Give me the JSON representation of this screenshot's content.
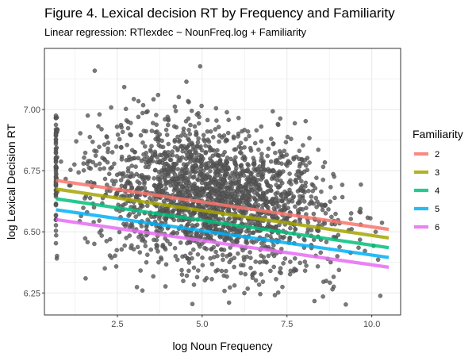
{
  "chart_data": {
    "type": "scatter",
    "title": "Figure 4. Lexical decision RT by Frequency and Familiarity",
    "subtitle": "Linear regression: RTlexdec ~ NounFreq.log + Familiarity",
    "xlabel": "log Noun Frequency",
    "ylabel": "log Lexical Decision RT",
    "xlim": [
      0.35,
      10.85
    ],
    "ylim": [
      6.16,
      7.25
    ],
    "x_ticks": [
      2.5,
      5.0,
      7.5,
      10.0
    ],
    "x_tick_labels": [
      "2.5",
      "5.0",
      "7.5",
      "10.0"
    ],
    "y_ticks": [
      6.25,
      6.5,
      6.75,
      7.0
    ],
    "y_tick_labels": [
      "6.25",
      "6.50",
      "6.75",
      "7.00"
    ],
    "grid": true,
    "legend_position": "right",
    "legend_title": "Familiarity",
    "point_color": "#595959",
    "scatter": {
      "x_range": [
        0.69,
        10.5
      ],
      "y_range": [
        6.2,
        7.18
      ]
    },
    "series": [
      {
        "name": "2",
        "color": "#F8766D",
        "x": [
          0.69,
          10.5
        ],
        "y": [
          6.71,
          6.51
        ]
      },
      {
        "name": "3",
        "color": "#A3A500",
        "x": [
          0.69,
          10.5
        ],
        "y": [
          6.675,
          6.475
        ]
      },
      {
        "name": "4",
        "color": "#00BF7D",
        "x": [
          0.69,
          10.5
        ],
        "y": [
          6.635,
          6.435
        ]
      },
      {
        "name": "5",
        "color": "#00B0F6",
        "x": [
          0.69,
          10.5
        ],
        "y": [
          6.59,
          6.395
        ]
      },
      {
        "name": "6",
        "color": "#E76BF3",
        "x": [
          0.69,
          10.5
        ],
        "y": [
          6.55,
          6.355
        ]
      }
    ]
  }
}
